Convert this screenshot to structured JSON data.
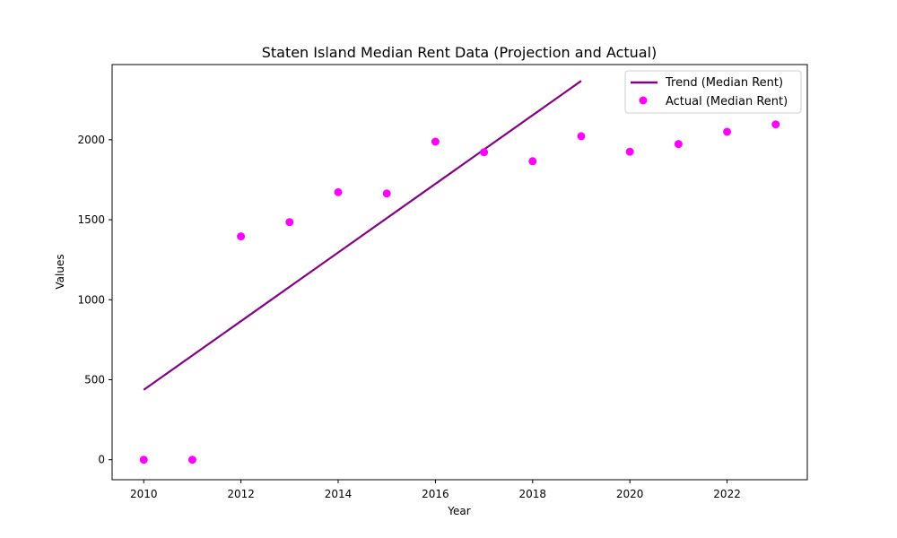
{
  "chart_data": {
    "type": "line",
    "title": "Staten Island Median Rent Data (Projection and Actual)",
    "xlabel": "Year",
    "ylabel": "Values",
    "xlim": [
      2009.35,
      2023.65
    ],
    "ylim": [
      -125,
      2470
    ],
    "x_ticks": [
      2010,
      2012,
      2014,
      2016,
      2018,
      2020,
      2022
    ],
    "y_ticks": [
      0,
      500,
      1000,
      1500,
      2000
    ],
    "grid": false,
    "legend_position": "top-right",
    "series": [
      {
        "name": "Trend (Median Rent)",
        "kind": "line",
        "color": "#800080",
        "x": [
          2010,
          2019
        ],
        "y": [
          437,
          2368
        ]
      },
      {
        "name": "Actual (Median Rent)",
        "kind": "scatter",
        "color": "#ff00ff",
        "x": [
          2010,
          2011,
          2012,
          2013,
          2014,
          2015,
          2016,
          2017,
          2018,
          2019,
          2020,
          2021,
          2022,
          2023
        ],
        "y": [
          0,
          0,
          1396,
          1485,
          1672,
          1664,
          1988,
          1922,
          1866,
          2022,
          1925,
          1973,
          2050,
          2096
        ]
      }
    ]
  }
}
